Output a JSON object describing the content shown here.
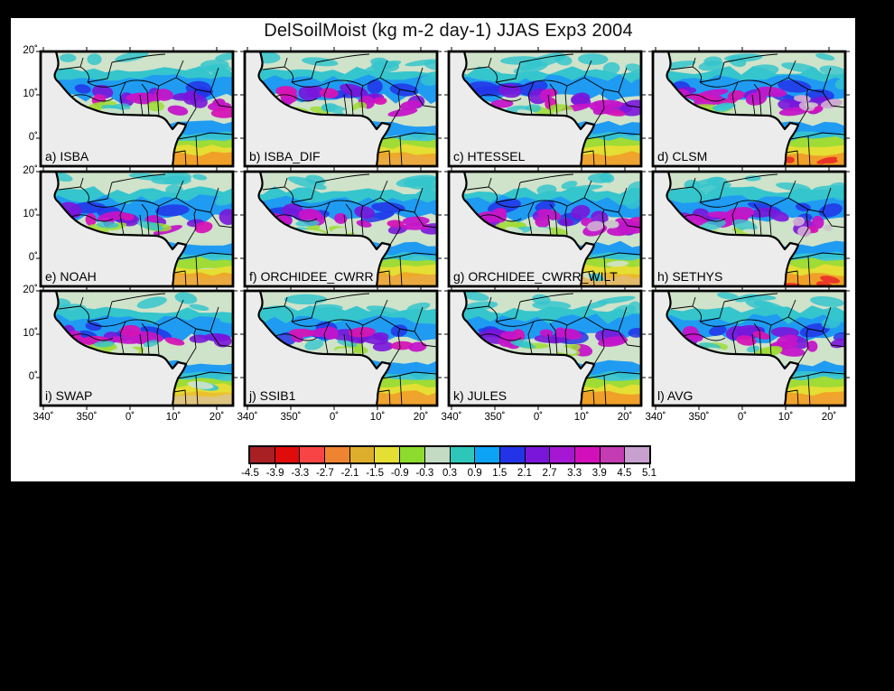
{
  "figure": {
    "title": "DelSoilMoist (kg m-2 day-1) JJAS Exp3 2004"
  },
  "panels": [
    {
      "id": "a",
      "label": "a) ISBA"
    },
    {
      "id": "b",
      "label": "b) ISBA_DIF"
    },
    {
      "id": "c",
      "label": "c) HTESSEL"
    },
    {
      "id": "d",
      "label": "d) CLSM"
    },
    {
      "id": "e",
      "label": "e) NOAH"
    },
    {
      "id": "f",
      "label": "f) ORCHIDEE_CWRR"
    },
    {
      "id": "g",
      "label": "g) ORCHIDEE_CWRR_WILT"
    },
    {
      "id": "h",
      "label": "h) SETHYS"
    },
    {
      "id": "i",
      "label": "i) SWAP"
    },
    {
      "id": "j",
      "label": "j) SSIB1"
    },
    {
      "id": "k",
      "label": "k) JULES"
    },
    {
      "id": "l",
      "label": "l) AVG"
    }
  ],
  "axes": {
    "lat_ticks": [
      "20˚",
      "10˚",
      "0˚"
    ],
    "lon_ticks": [
      "340˚",
      "350˚",
      "0˚",
      "10˚",
      "20˚"
    ]
  },
  "colorbar": {
    "tick_labels": [
      "-4.5",
      "-3.9",
      "-3.3",
      "-2.7",
      "-2.1",
      "-1.5",
      "-0.9",
      "-0.3",
      "0.3",
      "0.9",
      "1.5",
      "2.1",
      "2.7",
      "3.3",
      "3.9",
      "4.5",
      "5.1"
    ],
    "colors": [
      "#a81f24",
      "#e00b0b",
      "#f84444",
      "#ef8430",
      "#ddae2c",
      "#e5de33",
      "#8cdb2d",
      "#c2dbc2",
      "#2ec6b8",
      "#0ca3f7",
      "#2334e8",
      "#7916da",
      "#a517d2",
      "#d30fba",
      "#c43bb3",
      "#c7a0d0"
    ]
  },
  "map_palette": {
    "ocean": "#ececec",
    "sahel_pale_green": "#cfe2ca",
    "cyan": "#35c5cd",
    "sky_blue": "#1f9bf2",
    "deep_blue": "#2334e8",
    "violet": "#7916da",
    "magenta": "#c415c8",
    "pink_magenta": "#d614b4",
    "pale_lavender": "#cfa8d4",
    "green": "#9fdc35",
    "yellow": "#e5de33",
    "orange": "#f0a028",
    "red": "#e83327",
    "border": "#000000"
  }
}
